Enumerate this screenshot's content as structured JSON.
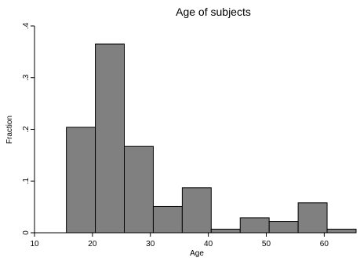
{
  "chart_data": {
    "type": "bar",
    "subtype": "histogram",
    "title": "Age of subjects",
    "xlabel": "Age",
    "ylabel": "Fraction",
    "xlim": [
      10,
      65.5
    ],
    "ylim": [
      0,
      0.4
    ],
    "x_ticks": [
      10,
      20,
      30,
      40,
      50,
      60
    ],
    "x_tick_labels": [
      "10",
      "20",
      "30",
      "40",
      "50",
      "60"
    ],
    "y_ticks": [
      0,
      0.1,
      0.2,
      0.3,
      0.4
    ],
    "y_tick_labels": [
      "0",
      ".1",
      ".2",
      ".3",
      ".4"
    ],
    "bins": [
      {
        "start": 15.5,
        "end": 20.5,
        "value": 0.204
      },
      {
        "start": 20.5,
        "end": 25.5,
        "value": 0.365
      },
      {
        "start": 25.5,
        "end": 30.5,
        "value": 0.167
      },
      {
        "start": 30.5,
        "end": 35.5,
        "value": 0.051
      },
      {
        "start": 35.5,
        "end": 40.5,
        "value": 0.087
      },
      {
        "start": 40.5,
        "end": 45.5,
        "value": 0.007
      },
      {
        "start": 45.5,
        "end": 50.5,
        "value": 0.029
      },
      {
        "start": 50.5,
        "end": 55.5,
        "value": 0.022
      },
      {
        "start": 55.5,
        "end": 60.5,
        "value": 0.058
      },
      {
        "start": 60.5,
        "end": 65.5,
        "value": 0.007
      }
    ],
    "bar_color": "#808080",
    "grid": false,
    "legend": "none"
  }
}
